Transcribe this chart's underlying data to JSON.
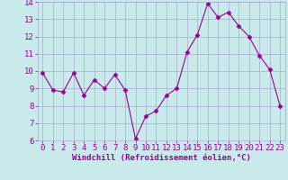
{
  "x": [
    0,
    1,
    2,
    3,
    4,
    5,
    6,
    7,
    8,
    9,
    10,
    11,
    12,
    13,
    14,
    15,
    16,
    17,
    18,
    19,
    20,
    21,
    22,
    23
  ],
  "y": [
    9.9,
    8.9,
    8.8,
    9.9,
    8.6,
    9.5,
    9.0,
    9.8,
    8.9,
    6.1,
    7.4,
    7.7,
    8.6,
    9.0,
    11.1,
    12.1,
    13.9,
    13.1,
    13.4,
    12.6,
    12.0,
    10.9,
    10.1,
    8.0
  ],
  "line_color": "#990099",
  "marker": "D",
  "marker_size": 2.5,
  "bg_color": "#c8eaea",
  "grid_color": "#aaaacc",
  "xlabel": "Windchill (Refroidissement éolien,°C)",
  "xlabel_color": "#990099",
  "xlabel_fontsize": 6.5,
  "tick_color": "#990099",
  "tick_fontsize": 6.5,
  "ylim": [
    6,
    14
  ],
  "yticks": [
    6,
    7,
    8,
    9,
    10,
    11,
    12,
    13,
    14
  ],
  "xlim": [
    -0.5,
    23.5
  ],
  "xticks": [
    0,
    1,
    2,
    3,
    4,
    5,
    6,
    7,
    8,
    9,
    10,
    11,
    12,
    13,
    14,
    15,
    16,
    17,
    18,
    19,
    20,
    21,
    22,
    23
  ]
}
